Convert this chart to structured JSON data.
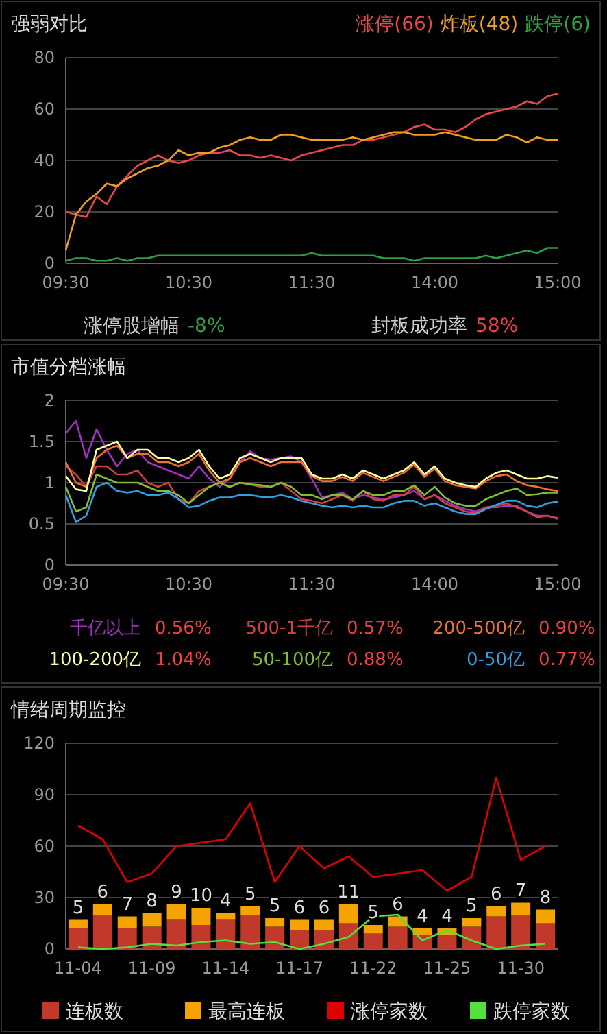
{
  "chart_data": [
    {
      "type": "line",
      "title": "强弱对比",
      "categories": [
        "09:30",
        null,
        null,
        null,
        null,
        null,
        null,
        null,
        null,
        null,
        null,
        null,
        "10:30",
        null,
        null,
        null,
        null,
        null,
        null,
        null,
        null,
        null,
        null,
        null,
        "11:30",
        null,
        null,
        null,
        null,
        null,
        null,
        null,
        null,
        null,
        null,
        null,
        "14:00",
        null,
        null,
        null,
        null,
        null,
        null,
        null,
        null,
        null,
        null,
        null,
        "15:00"
      ],
      "ylim": [
        0,
        80
      ],
      "yticks": [
        0,
        20,
        40,
        60,
        80
      ],
      "grid": "y",
      "legend": "top right",
      "annotations": [
        "涨停股增幅 -8%",
        "封板成功率 58%"
      ],
      "series": [
        {
          "name": "涨停(66)",
          "color": "#e8484a",
          "values": [
            20,
            19,
            18,
            26,
            23,
            30,
            34,
            38,
            40,
            42,
            40,
            39,
            40,
            42,
            43,
            43,
            44,
            42,
            42,
            41,
            42,
            41,
            40,
            42,
            43,
            44,
            45,
            46,
            46,
            48,
            48,
            49,
            50,
            51,
            53,
            54,
            52,
            52,
            51,
            53,
            56,
            58,
            59,
            60,
            61,
            63,
            62,
            65,
            66
          ]
        },
        {
          "name": "炸板(48)",
          "color": "#f0a020",
          "values": [
            5,
            19,
            24,
            27,
            31,
            30,
            33,
            35,
            37,
            38,
            40,
            44,
            42,
            43,
            43,
            45,
            46,
            48,
            49,
            48,
            48,
            50,
            50,
            49,
            48,
            48,
            48,
            48,
            49,
            48,
            49,
            50,
            51,
            51,
            50,
            50,
            50,
            51,
            50,
            49,
            48,
            48,
            48,
            50,
            49,
            47,
            49,
            48,
            48
          ]
        },
        {
          "name": "跌停(6)",
          "color": "#2ea043",
          "values": [
            1,
            2,
            2,
            1,
            1,
            2,
            1,
            2,
            2,
            3,
            3,
            3,
            3,
            3,
            3,
            3,
            3,
            3,
            3,
            3,
            3,
            3,
            3,
            3,
            4,
            3,
            3,
            3,
            3,
            3,
            3,
            2,
            2,
            2,
            1,
            2,
            2,
            2,
            2,
            2,
            2,
            3,
            2,
            3,
            4,
            5,
            4,
            6,
            6
          ]
        }
      ]
    },
    {
      "type": "line",
      "title": "市值分档涨幅",
      "categories": [
        "09:30",
        null,
        null,
        null,
        null,
        null,
        null,
        null,
        null,
        null,
        null,
        null,
        "10:30",
        null,
        null,
        null,
        null,
        null,
        null,
        null,
        null,
        null,
        null,
        null,
        "11:30",
        null,
        null,
        null,
        null,
        null,
        null,
        null,
        null,
        null,
        null,
        null,
        "14:00",
        null,
        null,
        null,
        null,
        null,
        null,
        null,
        null,
        null,
        null,
        null,
        "15:00"
      ],
      "ylim": [
        0,
        2
      ],
      "yticks": [
        0,
        0.5,
        1,
        1.5,
        2
      ],
      "grid": "y",
      "legend": "bottom",
      "annotations": [
        "0.56%",
        "0.57%",
        "0.90%",
        "1.04%",
        "0.88%",
        "0.77%"
      ],
      "series": [
        {
          "name": "千亿以上",
          "color": "#a030c0",
          "values": [
            1.6,
            1.75,
            1.3,
            1.65,
            1.4,
            1.2,
            1.35,
            1.4,
            1.25,
            1.2,
            1.15,
            1.1,
            1.05,
            1.2,
            1.05,
            0.95,
            1.05,
            1.25,
            1.38,
            1.3,
            1.28,
            1.3,
            1.32,
            1.25,
            1.05,
            0.82,
            0.85,
            0.88,
            0.8,
            0.85,
            0.82,
            0.8,
            0.82,
            0.85,
            0.9,
            0.8,
            0.85,
            0.78,
            0.72,
            0.68,
            0.65,
            0.7,
            0.7,
            0.72,
            0.72,
            0.65,
            0.6,
            0.6,
            0.56
          ]
        },
        {
          "name": "500-1千亿",
          "color": "#d04040",
          "values": [
            1.2,
            1.1,
            0.95,
            1.2,
            1.2,
            1.1,
            1.1,
            1.15,
            1.0,
            0.95,
            1.0,
            0.8,
            0.75,
            0.9,
            0.95,
            1.0,
            0.95,
            1.0,
            0.98,
            0.95,
            0.95,
            1.0,
            0.9,
            0.8,
            0.78,
            0.75,
            0.8,
            0.85,
            0.78,
            0.9,
            0.8,
            0.78,
            0.85,
            0.85,
            0.95,
            0.8,
            0.85,
            0.75,
            0.7,
            0.65,
            0.63,
            0.7,
            0.72,
            0.75,
            0.7,
            0.65,
            0.58,
            0.6,
            0.57
          ]
        },
        {
          "name": "200-500亿",
          "color": "#f07030",
          "values": [
            1.25,
            1.0,
            0.95,
            1.3,
            1.4,
            1.45,
            1.3,
            1.35,
            1.35,
            1.25,
            1.25,
            1.2,
            1.25,
            1.35,
            1.15,
            1.0,
            1.05,
            1.25,
            1.3,
            1.25,
            1.2,
            1.25,
            1.25,
            1.25,
            1.08,
            1.02,
            1.02,
            1.07,
            1.02,
            1.12,
            1.07,
            1.02,
            1.07,
            1.12,
            1.22,
            1.07,
            1.17,
            1.02,
            0.97,
            0.95,
            0.93,
            1.02,
            1.08,
            1.1,
            1.02,
            0.97,
            0.95,
            0.92,
            0.9
          ]
        },
        {
          "name": "100-200亿",
          "color": "#ffffa0",
          "values": [
            1.08,
            0.92,
            0.9,
            1.4,
            1.45,
            1.5,
            1.3,
            1.4,
            1.4,
            1.3,
            1.3,
            1.25,
            1.3,
            1.4,
            1.2,
            1.05,
            1.1,
            1.3,
            1.35,
            1.3,
            1.25,
            1.3,
            1.3,
            1.3,
            1.1,
            1.05,
            1.05,
            1.1,
            1.05,
            1.15,
            1.1,
            1.05,
            1.1,
            1.15,
            1.25,
            1.1,
            1.2,
            1.05,
            1.0,
            0.97,
            0.95,
            1.05,
            1.12,
            1.15,
            1.1,
            1.05,
            1.05,
            1.08,
            1.06
          ]
        },
        {
          "name": "50-100亿",
          "color": "#80c030",
          "values": [
            0.95,
            0.65,
            0.7,
            1.1,
            1.05,
            1.0,
            1.0,
            1.0,
            0.95,
            0.9,
            0.9,
            0.85,
            0.75,
            0.85,
            0.95,
            1.0,
            0.95,
            1.0,
            0.98,
            0.97,
            0.95,
            1.0,
            0.95,
            0.85,
            0.85,
            0.8,
            0.85,
            0.85,
            0.8,
            0.9,
            0.85,
            0.85,
            0.9,
            0.9,
            0.97,
            0.85,
            0.95,
            0.82,
            0.75,
            0.72,
            0.72,
            0.8,
            0.85,
            0.9,
            0.93,
            0.85,
            0.86,
            0.88,
            0.88
          ]
        },
        {
          "name": "0-50亿",
          "color": "#30a0e0",
          "values": [
            0.85,
            0.52,
            0.6,
            0.95,
            1.0,
            0.9,
            0.88,
            0.9,
            0.85,
            0.85,
            0.88,
            0.8,
            0.7,
            0.72,
            0.78,
            0.82,
            0.82,
            0.85,
            0.85,
            0.83,
            0.82,
            0.85,
            0.82,
            0.78,
            0.75,
            0.72,
            0.7,
            0.72,
            0.7,
            0.72,
            0.7,
            0.7,
            0.75,
            0.78,
            0.78,
            0.72,
            0.75,
            0.7,
            0.65,
            0.62,
            0.62,
            0.68,
            0.73,
            0.78,
            0.78,
            0.72,
            0.7,
            0.75,
            0.77
          ]
        }
      ]
    },
    {
      "type": "bar",
      "title": "情绪周期监控",
      "stacked": true,
      "categories": [
        "11-04",
        null,
        null,
        "11-09",
        null,
        null,
        "11-14",
        null,
        null,
        "11-17",
        null,
        null,
        "11-22",
        null,
        null,
        "11-25",
        null,
        null,
        "11-30",
        null
      ],
      "ylim": [
        0,
        120
      ],
      "yticks": [
        0,
        30,
        60,
        90,
        120
      ],
      "grid": "y",
      "legend": "bottom",
      "series": [
        {
          "name": "连板数",
          "color": "#c0392b",
          "values": [
            12,
            20,
            12,
            13,
            17,
            14,
            17,
            20,
            13,
            11,
            11,
            15,
            9,
            13,
            8,
            8,
            13,
            19,
            20,
            15
          ]
        },
        {
          "name": "最高连板",
          "color": "#f5a300",
          "values": [
            5,
            6,
            7,
            8,
            9,
            10,
            4,
            5,
            5,
            6,
            6,
            11,
            5,
            6,
            4,
            4,
            5,
            6,
            7,
            8
          ],
          "value_labels": [
            "5",
            "6",
            "7",
            "8",
            "9",
            "10",
            "4",
            "5",
            "5",
            "6",
            "6",
            "11",
            "5",
            "6",
            "4",
            "4",
            "5",
            "6",
            "7",
            "8"
          ]
        },
        {
          "name": "涨停家数",
          "type": "line",
          "color": "#e00000",
          "values": [
            72,
            64,
            39,
            44,
            60,
            62,
            64,
            85,
            39,
            60,
            47,
            54,
            42,
            44,
            46,
            34,
            42,
            100,
            52,
            60
          ]
        },
        {
          "name": "跌停家数",
          "type": "line",
          "color": "#55e040",
          "values": [
            1,
            0,
            1,
            3,
            2,
            4,
            5,
            3,
            4,
            0,
            3,
            7,
            19,
            20,
            5,
            11,
            5,
            0,
            2,
            3
          ]
        }
      ]
    }
  ]
}
